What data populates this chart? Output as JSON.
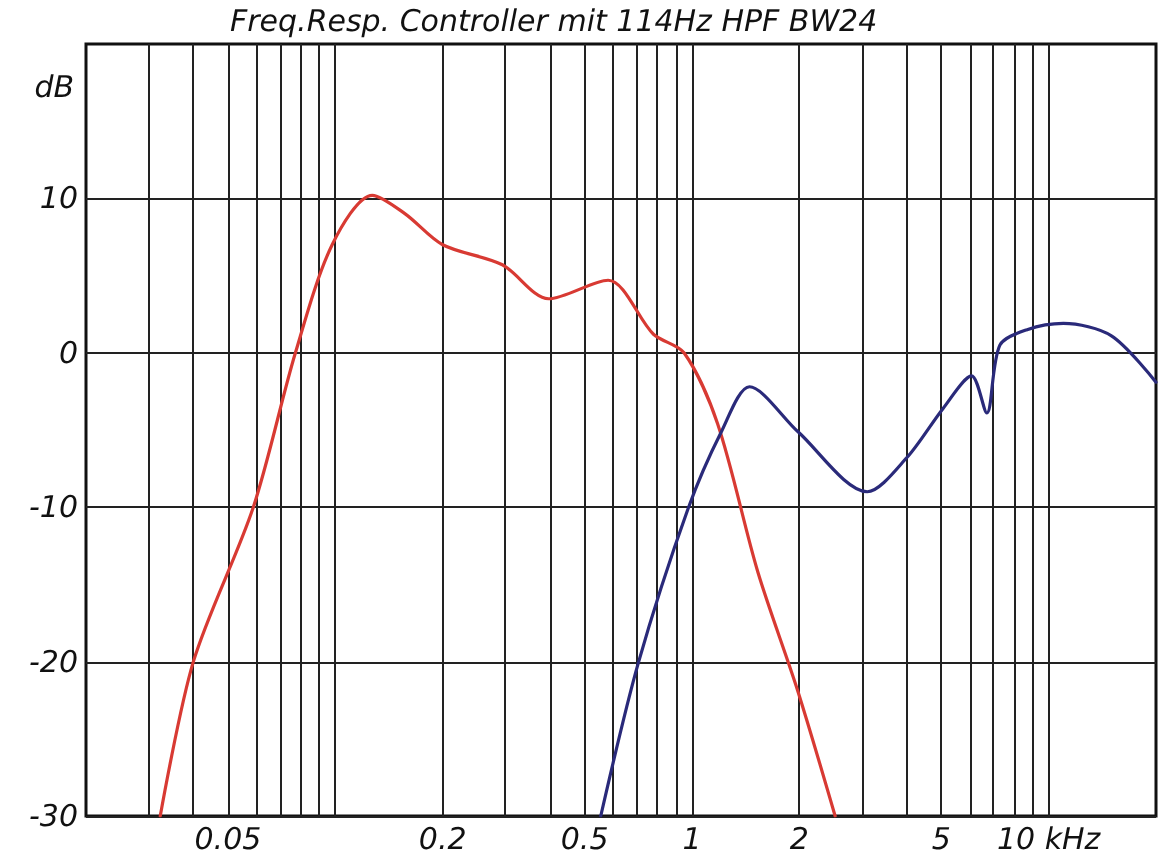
{
  "chart_data": {
    "type": "line",
    "title": "Freq.Resp. Controller mit 114Hz HPF BW24",
    "ylabel": "dB",
    "log": "x",
    "grid": true,
    "marker": "none",
    "line_style": "solid",
    "xlim": [
      0.02,
      20
    ],
    "xticks": [
      {
        "value": 0.03,
        "label": null
      },
      {
        "value": 0.04,
        "label": null
      },
      0.05,
      {
        "value": 0.06,
        "label": null
      },
      {
        "value": 0.07,
        "label": null
      },
      {
        "value": 0.08,
        "label": null
      },
      {
        "value": 0.09,
        "label": null
      },
      {
        "value": 0.1,
        "label": null
      },
      0.2,
      {
        "value": 0.3,
        "label": null
      },
      {
        "value": 0.4,
        "label": null
      },
      0.5,
      {
        "value": 0.6,
        "label": null
      },
      {
        "value": 0.7,
        "label": null
      },
      {
        "value": 0.8,
        "label": null
      },
      {
        "value": 0.9,
        "label": null
      },
      1,
      2,
      {
        "value": 3,
        "label": null
      },
      {
        "value": 4,
        "label": null
      },
      5,
      {
        "value": 6,
        "label": null
      },
      {
        "value": 7,
        "label": null
      },
      {
        "value": 8,
        "label": null
      },
      {
        "value": 9,
        "label": null
      },
      {
        "value": 10,
        "label": "10 kHz"
      }
    ],
    "ylim": [
      -30,
      20
    ],
    "yticks": [
      -30,
      -20,
      -10,
      0,
      10
    ],
    "series": [
      {
        "color": "#d83a33",
        "x": [
          0.0323,
          0.04,
          0.0589,
          0.0773,
          0.098,
          0.127,
          0.157,
          0.2,
          0.294,
          0.396,
          0.582,
          0.78,
          0.95,
          1.18,
          1.53,
          1.98,
          2.52
        ],
        "values": [
          -30,
          -20,
          -10,
          0,
          7,
          10.2,
          9,
          7,
          5.7,
          3.5,
          4.7,
          1.2,
          0,
          -4.6,
          -14.2,
          -21.9,
          -30
        ]
      },
      {
        "color": "#2a2a7a",
        "x": [
          0.555,
          0.707,
          0.975,
          1.21,
          1.45,
          1.98,
          3.1,
          4.0,
          5.06,
          6.08,
          6.71,
          7.3,
          8.7,
          11,
          15,
          20
        ],
        "values": [
          -30,
          -20.1,
          -10.1,
          -5.1,
          -2.2,
          -5.1,
          -9,
          -6.8,
          -3.6,
          -1.5,
          -3.9,
          0.5,
          1.5,
          1.9,
          1.1,
          -1.9
        ]
      }
    ]
  }
}
